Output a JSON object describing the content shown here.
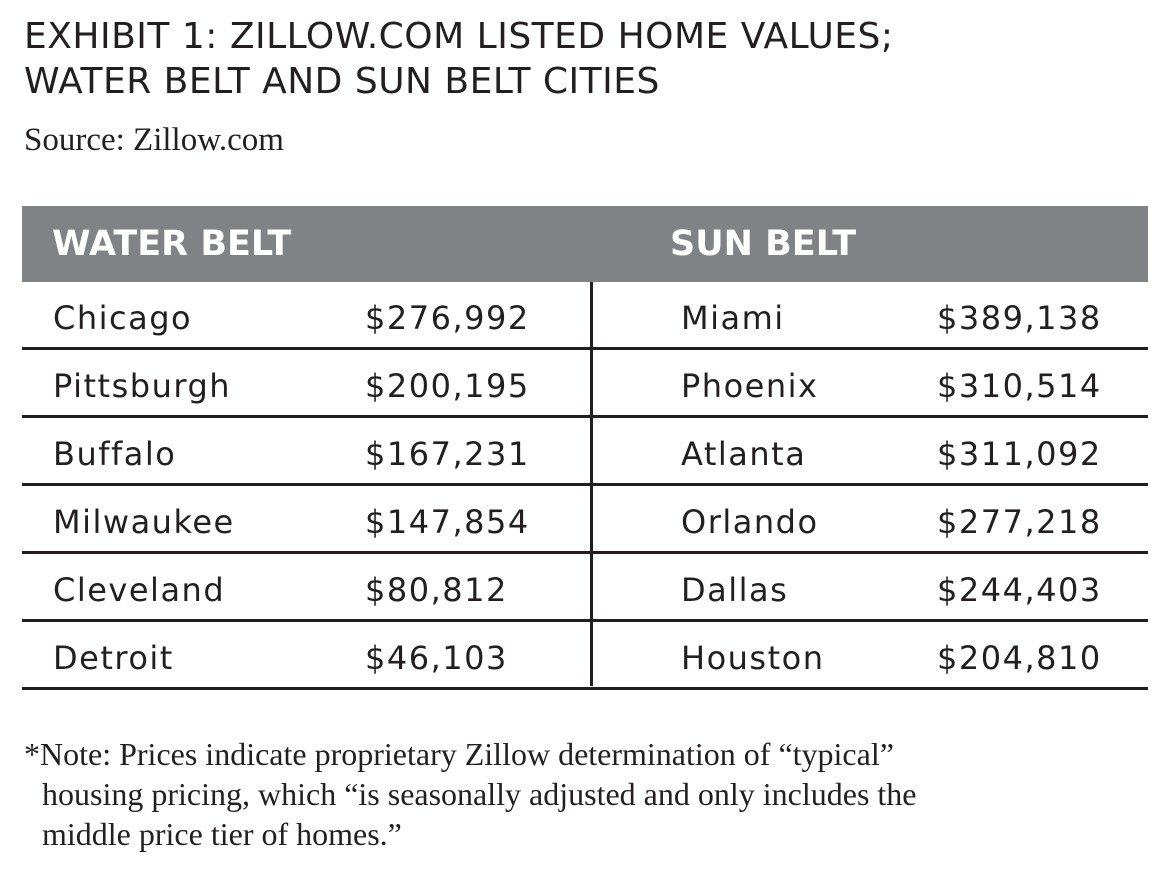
{
  "exhibit": {
    "title_line1": "EXHIBIT 1: ZILLOW.COM LISTED HOME VALUES;",
    "title_line2": "WATER BELT AND SUN BELT CITIES",
    "source": "Source: Zillow.com"
  },
  "table": {
    "header_left": "WATER BELT",
    "header_right": "SUN BELT",
    "rows": [
      {
        "water_city": "Chicago",
        "water_value": "$276,992",
        "sun_city": "Miami",
        "sun_value": "$389,138"
      },
      {
        "water_city": "Pittsburgh",
        "water_value": "$200,195",
        "sun_city": "Phoenix",
        "sun_value": "$310,514"
      },
      {
        "water_city": "Buffalo",
        "water_value": "$167,231",
        "sun_city": "Atlanta",
        "sun_value": "$311,092"
      },
      {
        "water_city": "Milwaukee",
        "water_value": "$147,854",
        "sun_city": "Orlando",
        "sun_value": "$277,218"
      },
      {
        "water_city": "Cleveland",
        "water_value": "$80,812",
        "sun_city": "Dallas",
        "sun_value": "$244,403"
      },
      {
        "water_city": "Detroit",
        "water_value": "$46,103",
        "sun_city": "Houston",
        "sun_value": "$204,810"
      }
    ]
  },
  "note": {
    "line1": "*Note: Prices indicate proprietary Zillow determination of “typical”",
    "line2": "housing pricing, which “is seasonally adjusted and only includes the",
    "line3": "middle price tier of homes.”"
  },
  "colors": {
    "header_background": "#808285",
    "header_text": "#ffffff",
    "text": "#231f20"
  }
}
